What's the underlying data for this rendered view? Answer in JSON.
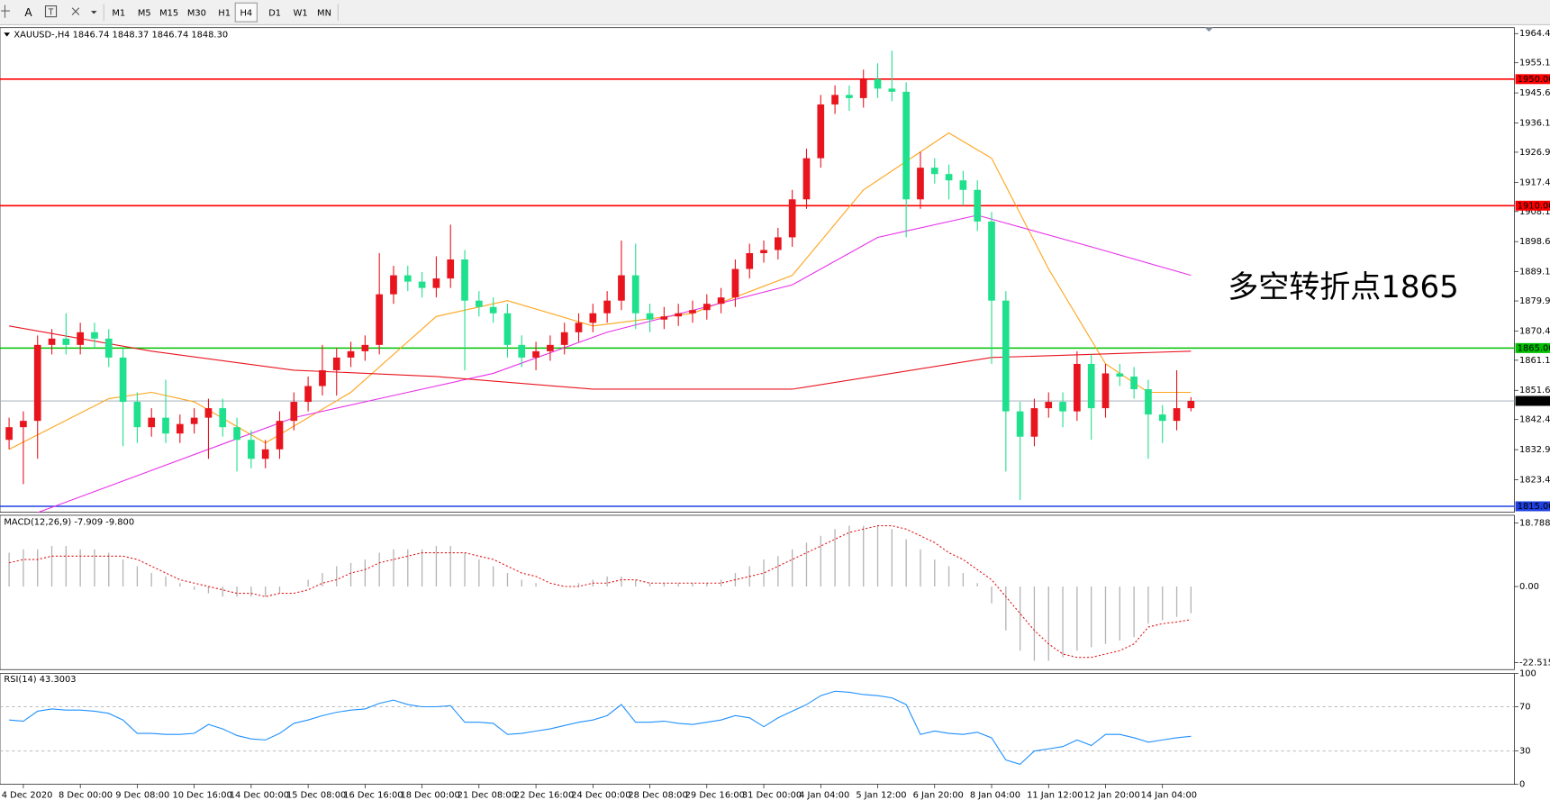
{
  "toolbar": {
    "text_tool": "A",
    "buttons": [
      "M1",
      "M5",
      "M15",
      "M30",
      "H1",
      "H4",
      "D1",
      "W1",
      "MN"
    ],
    "active": "H4"
  },
  "chart_data": [
    {
      "type": "candlestick",
      "title": "XAUUSD-,H4  1846.74 1848.37 1846.74 1848.30",
      "annotation": "多空转折点1865",
      "annotation_color": "#ff0000",
      "categories": [
        null,
        "4 Dec 2020",
        null,
        null,
        null,
        "8 Dec 00:00",
        null,
        null,
        null,
        "9 Dec 08:00",
        null,
        null,
        null,
        "10 Dec 16:00",
        null,
        null,
        null,
        "14 Dec 00:00",
        null,
        null,
        null,
        "15 Dec 08:00",
        null,
        null,
        null,
        "16 Dec 16:00",
        null,
        null,
        null,
        "18 Dec 00:00",
        null,
        null,
        null,
        "21 Dec 08:00",
        null,
        null,
        null,
        "22 Dec 16:00",
        null,
        null,
        null,
        "24 Dec 00:00",
        null,
        null,
        null,
        "28 Dec 08:00",
        null,
        null,
        null,
        "29 Dec 16:00",
        null,
        null,
        null,
        "31 Dec 00:00",
        null,
        null,
        null,
        "4 Jan 04:00",
        null,
        null,
        null,
        "5 Jan 12:00",
        null,
        null,
        null,
        "6 Jan 20:00",
        null,
        null,
        null,
        "8 Jan 04:00",
        null,
        null,
        null,
        "11 Jan 12:00",
        null,
        null,
        null,
        "12 Jan 20:00",
        null,
        null,
        null,
        "14 Jan 04:00",
        null,
        null
      ],
      "open": [
        1836,
        1840,
        1842,
        1866,
        1868,
        1866,
        1870,
        1868,
        1862,
        1848,
        1840,
        1843,
        1838,
        1841,
        1843,
        1846,
        1840,
        1836,
        1830,
        1833,
        1842,
        1848,
        1853,
        1858,
        1862,
        1864,
        1866,
        1882,
        1888,
        1886,
        1884,
        1887,
        1893,
        1880,
        1878,
        1876,
        1866,
        1862,
        1864,
        1866,
        1870,
        1873,
        1876,
        1880,
        1888,
        1876,
        1874,
        1875,
        1876,
        1877,
        1879,
        1881,
        1890,
        1895,
        1896,
        1900,
        1912,
        1925,
        1942,
        1945,
        1944,
        1950,
        1947,
        1946,
        1912,
        1922,
        1920,
        1918,
        1915,
        1905,
        1880,
        1845,
        1837,
        1846,
        1848,
        1845,
        1860,
        1846,
        1857,
        1856,
        1852,
        1844,
        1842,
        1846
      ],
      "high": [
        1843,
        1845,
        1869,
        1871,
        1876,
        1873,
        1873,
        1871,
        1865,
        1851,
        1846,
        1855,
        1844,
        1846,
        1849,
        1849,
        1843,
        1839,
        1836,
        1845,
        1851,
        1856,
        1866,
        1865,
        1867,
        1869,
        1895,
        1891,
        1891,
        1889,
        1894,
        1904,
        1896,
        1883,
        1881,
        1879,
        1869,
        1867,
        1869,
        1873,
        1876,
        1879,
        1883,
        1899,
        1898,
        1879,
        1878,
        1879,
        1880,
        1882,
        1884,
        1893,
        1898,
        1899,
        1903,
        1915,
        1928,
        1945,
        1948,
        1948,
        1953,
        1955,
        1959,
        1949,
        1927,
        1925,
        1923,
        1921,
        1918,
        1908,
        1883,
        1848,
        1849,
        1851,
        1851,
        1864,
        1863,
        1860,
        1860,
        1859,
        1855,
        1847,
        1858,
        1849.5
      ],
      "low": [
        1833,
        1822,
        1830,
        1863,
        1863,
        1863,
        1865,
        1859,
        1834,
        1835,
        1837,
        1835,
        1835,
        1838,
        1830,
        1837,
        1826,
        1827,
        1827,
        1830,
        1839,
        1845,
        1850,
        1850,
        1859,
        1861,
        1863,
        1879,
        1883,
        1881,
        1881,
        1884,
        1858,
        1875,
        1873,
        1862,
        1859,
        1858,
        1861,
        1863,
        1867,
        1870,
        1873,
        1877,
        1871,
        1870,
        1871,
        1872,
        1873,
        1874,
        1876,
        1878,
        1887,
        1892,
        1893,
        1897,
        1909,
        1922,
        1939,
        1940,
        1941,
        1944,
        1943,
        1900,
        1909,
        1917,
        1912,
        1910,
        1902,
        1860,
        1826,
        1817,
        1834,
        1843,
        1840,
        1842,
        1836,
        1843,
        1853,
        1849,
        1830,
        1835,
        1839,
        1845
      ],
      "close": [
        1840,
        1842,
        1866,
        1868,
        1866,
        1870,
        1868,
        1862,
        1848,
        1840,
        1843,
        1838,
        1841,
        1843,
        1846,
        1840,
        1836,
        1830,
        1833,
        1842,
        1848,
        1853,
        1858,
        1862,
        1864,
        1866,
        1882,
        1888,
        1886,
        1884,
        1887,
        1893,
        1880,
        1878,
        1876,
        1866,
        1862,
        1864,
        1866,
        1870,
        1873,
        1876,
        1880,
        1888,
        1876,
        1874,
        1875,
        1876,
        1877,
        1879,
        1881,
        1890,
        1895,
        1896,
        1900,
        1912,
        1925,
        1942,
        1945,
        1944,
        1950,
        1947,
        1946,
        1912,
        1922,
        1920,
        1918,
        1915,
        1905,
        1880,
        1845,
        1837,
        1846,
        1848,
        1845,
        1860,
        1846,
        1857,
        1856,
        1852,
        1844,
        1842,
        1846,
        1848.3
      ],
      "up_color": "#e8141e",
      "down_color": "#1fe08c",
      "ylim": [
        1813.1,
        1966.25
      ],
      "yticks": [
        {
          "value": 1964.4,
          "label": "1964.40"
        },
        1955.15,
        1945.65,
        1936.15,
        {
          "value": 1926.9,
          "label": "1926.90"
        },
        {
          "value": 1917.4,
          "label": "1917.40"
        },
        1908.15,
        1898.65,
        1889.15,
        {
          "value": 1879.9,
          "label": "1879.90"
        },
        {
          "value": 1870.4,
          "label": "1870.40"
        },
        1861.15,
        1851.65,
        {
          "value": 1842.4,
          "label": "1842.40"
        },
        {
          "value": 1832.9,
          "label": "1832.90"
        },
        {
          "value": 1823.4,
          "label": "1823.40"
        }
      ],
      "levels": [
        {
          "value": 1950,
          "label": "1950.00",
          "color": "#ff0000"
        },
        {
          "value": 1910,
          "label": "1910.00",
          "color": "#ff0000"
        },
        {
          "value": 1865,
          "label": "1865.00",
          "color": "#00c000"
        },
        {
          "value": 1815,
          "label": "1815.00",
          "color": "#2040e0"
        },
        {
          "value": 1848.3,
          "label": "1848.30",
          "color": "#9aa8b4",
          "label_bg": "#000000"
        }
      ],
      "series": [
        {
          "color": "#ffa31a",
          "x": [
            0,
            7,
            10,
            13,
            18,
            24,
            30,
            35,
            41,
            48,
            55,
            60,
            66,
            69,
            73,
            77,
            80,
            83
          ],
          "values": [
            1833,
            1849,
            1851,
            1848,
            1835,
            1851,
            1875,
            1880,
            1872,
            1876,
            1888,
            1915,
            1933,
            1925,
            1890,
            1860,
            1851,
            1851
          ]
        },
        {
          "color": "#e830e8",
          "x": [
            2,
            20,
            27,
            34,
            42,
            55,
            61,
            68,
            76,
            83
          ],
          "values": [
            1813,
            1843,
            1850,
            1857,
            1870,
            1885,
            1900,
            1907,
            1897,
            1888
          ]
        },
        {
          "color": "#e8141e",
          "x": [
            0,
            10,
            20,
            30,
            41,
            55,
            69,
            83
          ],
          "values": [
            1872,
            1864,
            1858,
            1856,
            1852,
            1852,
            1862,
            1864
          ]
        }
      ]
    },
    {
      "type": "macd",
      "title": "MACD(12,26,9) -7.909 -9.800",
      "values": [
        10,
        11,
        11,
        12,
        12,
        11,
        11,
        10,
        8,
        6,
        4,
        3,
        1,
        -1,
        -2,
        -3,
        -3,
        -3,
        -3,
        -2,
        0,
        2,
        4,
        6,
        7,
        8,
        10,
        11,
        11,
        11,
        12,
        12,
        10,
        8,
        6,
        4,
        2,
        1,
        0,
        0,
        1,
        2,
        3,
        3,
        2,
        1,
        1,
        1,
        1,
        1,
        2,
        4,
        6,
        8,
        9,
        11,
        13,
        15,
        17,
        18,
        18,
        18,
        17,
        14,
        11,
        8,
        6,
        4,
        1,
        -5,
        -13,
        -19,
        -22,
        -22,
        -21,
        -19,
        -18,
        -17,
        -16,
        -15,
        -11,
        -10,
        -9,
        -7.909
      ],
      "color": "#b4b4b4",
      "signal": [
        7,
        8,
        8,
        9,
        9,
        9,
        9,
        9,
        9,
        8,
        6,
        4,
        2,
        1,
        0,
        -1,
        -2,
        -2,
        -3,
        -2,
        -2,
        -1,
        1,
        2,
        4,
        5,
        7,
        8,
        9,
        10,
        10,
        10,
        10,
        9,
        8,
        6,
        4,
        3,
        1,
        0,
        0,
        1,
        1,
        2,
        2,
        1,
        1,
        1,
        1,
        1,
        1,
        2,
        3,
        4,
        6,
        8,
        10,
        12,
        14,
        16,
        17,
        18,
        18,
        17,
        15,
        13,
        10,
        8,
        5,
        2,
        -3,
        -8,
        -13,
        -17,
        -20,
        -21,
        -21,
        -20,
        -19,
        -17,
        -12,
        -11,
        -10.5,
        -9.8
      ],
      "signal_color": "#e0191b",
      "ylim": [
        -24.6,
        21.1
      ],
      "yticks": [
        18.788,
        {
          "value": 0,
          "label": "0.00"
        },
        -22.515
      ]
    },
    {
      "type": "line",
      "title": "RSI(14) 43.3003",
      "values": [
        58,
        57,
        66,
        68,
        67,
        67,
        66,
        64,
        58,
        46,
        46,
        45,
        45,
        46,
        54,
        50,
        44,
        41,
        40,
        46,
        55,
        58,
        62,
        65,
        67,
        68,
        73,
        76,
        72,
        70,
        70,
        71,
        56,
        56,
        55,
        45,
        46,
        48,
        50,
        53,
        56,
        58,
        62,
        72,
        56,
        56,
        57,
        55,
        54,
        56,
        58,
        62,
        60,
        52,
        60,
        66,
        72,
        80,
        84,
        83,
        81,
        80,
        78,
        72,
        45,
        48,
        46,
        45,
        47,
        42,
        22,
        18,
        30,
        32,
        34,
        40,
        35,
        45,
        45,
        42,
        38,
        40,
        42,
        43.3
      ],
      "color": "#1e90ff",
      "ylim": [
        0,
        100
      ],
      "yticks": [
        0,
        30,
        70,
        100
      ],
      "reference_lines": [
        30,
        70
      ]
    }
  ]
}
